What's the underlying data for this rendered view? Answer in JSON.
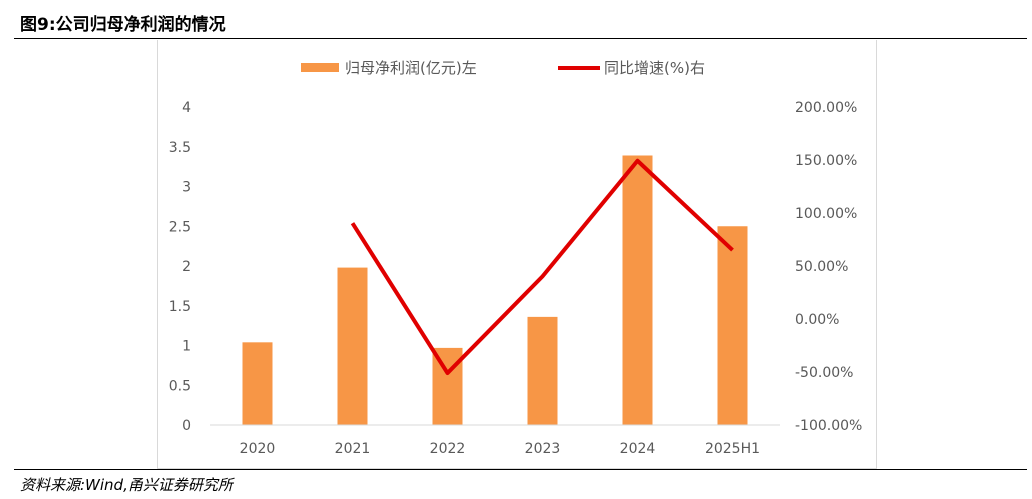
{
  "figure": {
    "title": "图9:公司归母净利润的情况",
    "source": "资料来源:Wind,甬兴证券研究所"
  },
  "chart_data": {
    "type": "bar",
    "categories": [
      "2020",
      "2021",
      "2022",
      "2023",
      "2024",
      "2025H1"
    ],
    "series": [
      {
        "name": "归母净利润(亿元)左",
        "type": "bar",
        "axis": "left",
        "color": "#F79646",
        "values": [
          1.04,
          1.98,
          0.97,
          1.36,
          3.39,
          2.5
        ]
      },
      {
        "name": "同比增速(%)右",
        "type": "line",
        "axis": "right",
        "color": "#E00000",
        "values": [
          null,
          90.4,
          -51.0,
          40.2,
          149.3,
          65.0
        ]
      }
    ],
    "left_axis": {
      "ylim": [
        0,
        4
      ],
      "ticks": [
        "0",
        "0.5",
        "1",
        "1.5",
        "2",
        "2.5",
        "3",
        "3.5",
        "4"
      ]
    },
    "right_axis": {
      "ylim": [
        -100,
        200
      ],
      "ticks": [
        "-100.00%",
        "-50.00%",
        "0.00%",
        "50.00%",
        "100.00%",
        "150.00%",
        "200.00%"
      ]
    },
    "legend": "top",
    "grid": false
  }
}
